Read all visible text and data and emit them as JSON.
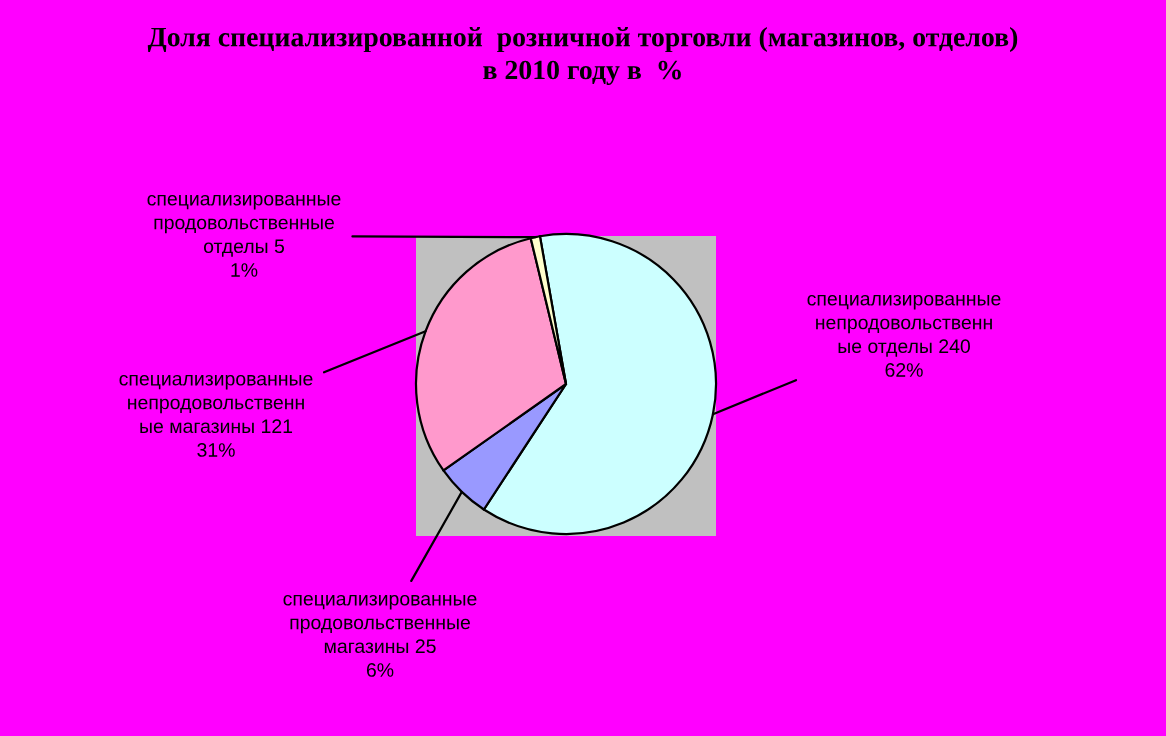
{
  "chart_data": {
    "type": "pie",
    "title": "Доля специализированной  розничной торговли (магазинов, отделов)\nв 2010 году в  %",
    "categories": [
      "специализированные\nнепродовольственн\nые отделы 240",
      "специализированные\nпродовольственные\nмагазины 25",
      "специализированные\nнепродовольственн\nые магазины 121",
      "специализированные\nпродовольственные\nотделы 5"
    ],
    "values": [
      62,
      6,
      31,
      1
    ],
    "value_labels": [
      "62%",
      "6%",
      "31%",
      "1%"
    ],
    "colors": [
      "#ccffff",
      "#9999ff",
      "#ff99cc",
      "#ffffcc"
    ],
    "legend": false
  }
}
